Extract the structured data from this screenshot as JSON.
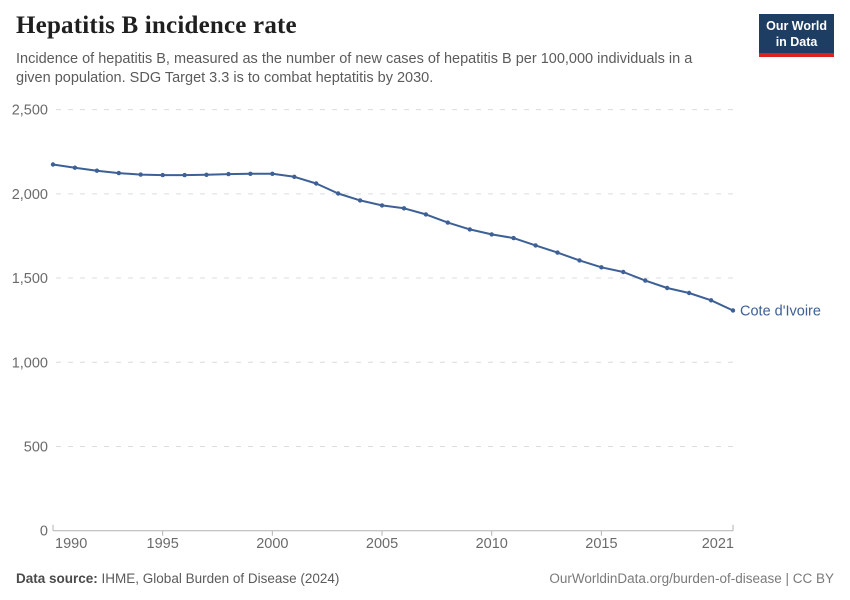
{
  "header": {
    "title": "Hepatitis B incidence rate",
    "subtitle": "Incidence of hepatitis B, measured as the number of new cases of hepatitis B per 100,000 individuals in a given population. SDG Target 3.3 is to combat heptatitis by 2030.",
    "logo": {
      "line1": "Our World",
      "line2": "in Data",
      "bg_color": "#1d3d63",
      "accent_color": "#dc2120"
    }
  },
  "chart_data": {
    "type": "line",
    "title": "Hepatitis B incidence rate",
    "xlabel": "",
    "ylabel": "",
    "xlim": [
      1990,
      2021
    ],
    "ylim": [
      0,
      2500
    ],
    "xticks": [
      1990,
      1995,
      2000,
      2005,
      2010,
      2015,
      2021
    ],
    "yticks": [
      0,
      500,
      1000,
      1500,
      2000,
      2500
    ],
    "ytick_labels": [
      "0",
      "500",
      "1,000",
      "1,500",
      "2,000",
      "2,500"
    ],
    "grid": "horizontal-dashed",
    "legend_position": "end-of-line",
    "axis_color": "#b3b3b3",
    "gridline_color": "#dcdcdc",
    "tick_label_color": "#6b6b6b",
    "series": [
      {
        "name": "Cote d'Ivoire",
        "color": "#3d6096",
        "x": [
          1990,
          1991,
          1992,
          1993,
          1994,
          1995,
          1996,
          1997,
          1998,
          1999,
          2000,
          2001,
          2002,
          2003,
          2004,
          2005,
          2006,
          2007,
          2008,
          2009,
          2010,
          2011,
          2012,
          2013,
          2014,
          2015,
          2016,
          2017,
          2018,
          2019,
          2020,
          2021
        ],
        "values": [
          2174,
          2155,
          2137,
          2123,
          2114,
          2111,
          2111,
          2113,
          2117,
          2119,
          2119,
          2101,
          2061,
          2002,
          1961,
          1931,
          1914,
          1878,
          1829,
          1789,
          1759,
          1737,
          1694,
          1651,
          1605,
          1564,
          1536,
          1485,
          1441,
          1411,
          1368,
          1307
        ]
      }
    ]
  },
  "footer": {
    "source_label": "Data source:",
    "source_value": "IHME, Global Burden of Disease (2024)",
    "credit": "OurWorldinData.org/burden-of-disease | CC BY"
  }
}
